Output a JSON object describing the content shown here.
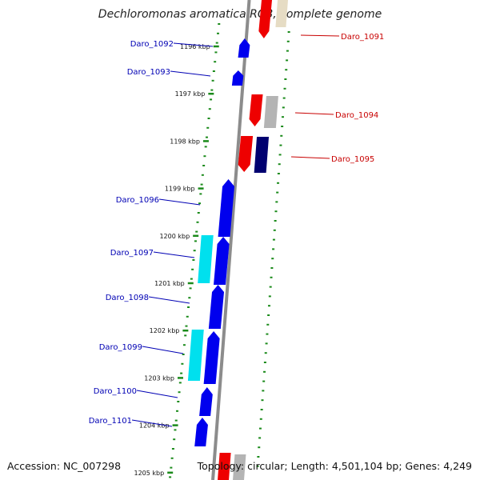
{
  "title": "Dechloromonas aromatica RCB, complete genome",
  "footer": {
    "accession": "Accession: NC_007298",
    "summary": "Topology: circular; Length: 4,501,104 bp; Genes: 4,249"
  },
  "colors": {
    "backbone": "#8c8c8c",
    "forward_label": "#0000b4",
    "reverse_label": "#c80000",
    "tick": "#1a8a1a",
    "blue": "#0000ee",
    "cyan": "#00e0ee",
    "red": "#ee0000",
    "navy": "#000070",
    "grey": "#b4b4b4",
    "beige": "#e6dcc4"
  },
  "ticks": [
    {
      "label": "1196 kbp"
    },
    {
      "label": "1197 kbp"
    },
    {
      "label": "1198 kbp"
    },
    {
      "label": "1199 kbp"
    },
    {
      "label": "1200 kbp"
    },
    {
      "label": "1201 kbp"
    },
    {
      "label": "1202 kbp"
    },
    {
      "label": "1203 kbp"
    },
    {
      "label": "1204 kbp"
    },
    {
      "label": "1205 kbp"
    }
  ],
  "gene_labels": {
    "forward": [
      "Daro_1092",
      "Daro_1093",
      "Daro_1096",
      "Daro_1097",
      "Daro_1098",
      "Daro_1099",
      "Daro_1100",
      "Daro_1101"
    ],
    "reverse": [
      "Daro_1091",
      "Daro_1094",
      "Daro_1095"
    ]
  }
}
